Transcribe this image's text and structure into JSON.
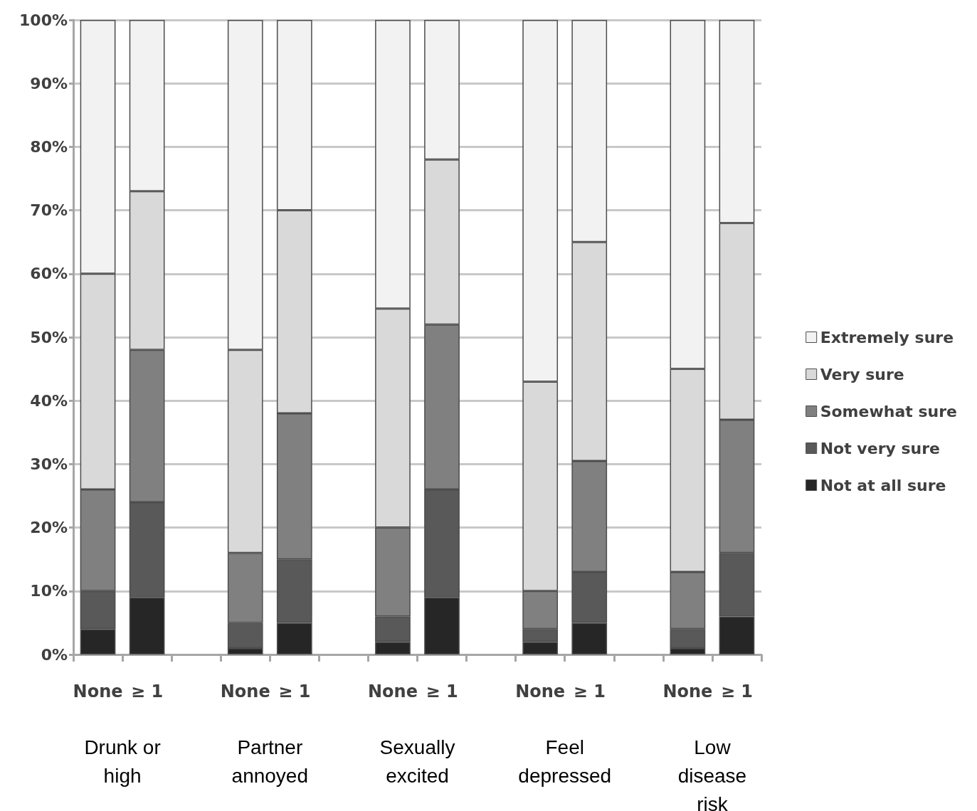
{
  "chart_data": {
    "type": "bar",
    "stacked": true,
    "categories": [
      "None",
      "≥ 1",
      null,
      "None",
      "≥ 1",
      null,
      "None",
      "≥ 1",
      null,
      "None",
      "≥ 1",
      null,
      "None",
      "≥ 1"
    ],
    "series": [
      {
        "name": "Not at all sure",
        "color": "#262626",
        "values": [
          4,
          9,
          null,
          1,
          5,
          null,
          2,
          9,
          null,
          2,
          5,
          null,
          1,
          6
        ]
      },
      {
        "name": "Not very sure",
        "color": "#595959",
        "values": [
          6,
          15,
          null,
          4,
          10,
          null,
          4,
          17,
          null,
          2,
          8,
          null,
          3,
          10
        ]
      },
      {
        "name": "Somewhat sure",
        "color": "#808080",
        "values": [
          16,
          24,
          null,
          11,
          23,
          null,
          14,
          26,
          null,
          6,
          17.5,
          null,
          9,
          21
        ]
      },
      {
        "name": "Very sure",
        "color": "#d9d9d9",
        "values": [
          34,
          25,
          null,
          32,
          32,
          null,
          34.5,
          26,
          null,
          33,
          34.5,
          null,
          32,
          31
        ]
      },
      {
        "name": "Extremely sure",
        "color": "#f2f2f2",
        "values": [
          40,
          27,
          null,
          52,
          30,
          null,
          45.5,
          22,
          null,
          57,
          35,
          null,
          55,
          32
        ]
      }
    ],
    "ylim": [
      0,
      100
    ],
    "yticks": [
      {
        "value": 0,
        "label": "0%"
      },
      {
        "value": 10,
        "label": "10%"
      },
      {
        "value": 20,
        "label": "20%"
      },
      {
        "value": 30,
        "label": "30%"
      },
      {
        "value": 40,
        "label": "40%"
      },
      {
        "value": 50,
        "label": "50%"
      },
      {
        "value": 60,
        "label": "60%"
      },
      {
        "value": 70,
        "label": "70%"
      },
      {
        "value": 80,
        "label": "80%"
      },
      {
        "value": 90,
        "label": "90%"
      },
      {
        "value": 100,
        "label": "100%"
      }
    ],
    "grid": "y",
    "legend": "right",
    "annotations": [
      "Drunk or\nhigh",
      "Partner\nannoyed",
      "Sexually\nexcited",
      "Feel\ndepressed",
      "Low\ndisease\nrisk"
    ]
  }
}
